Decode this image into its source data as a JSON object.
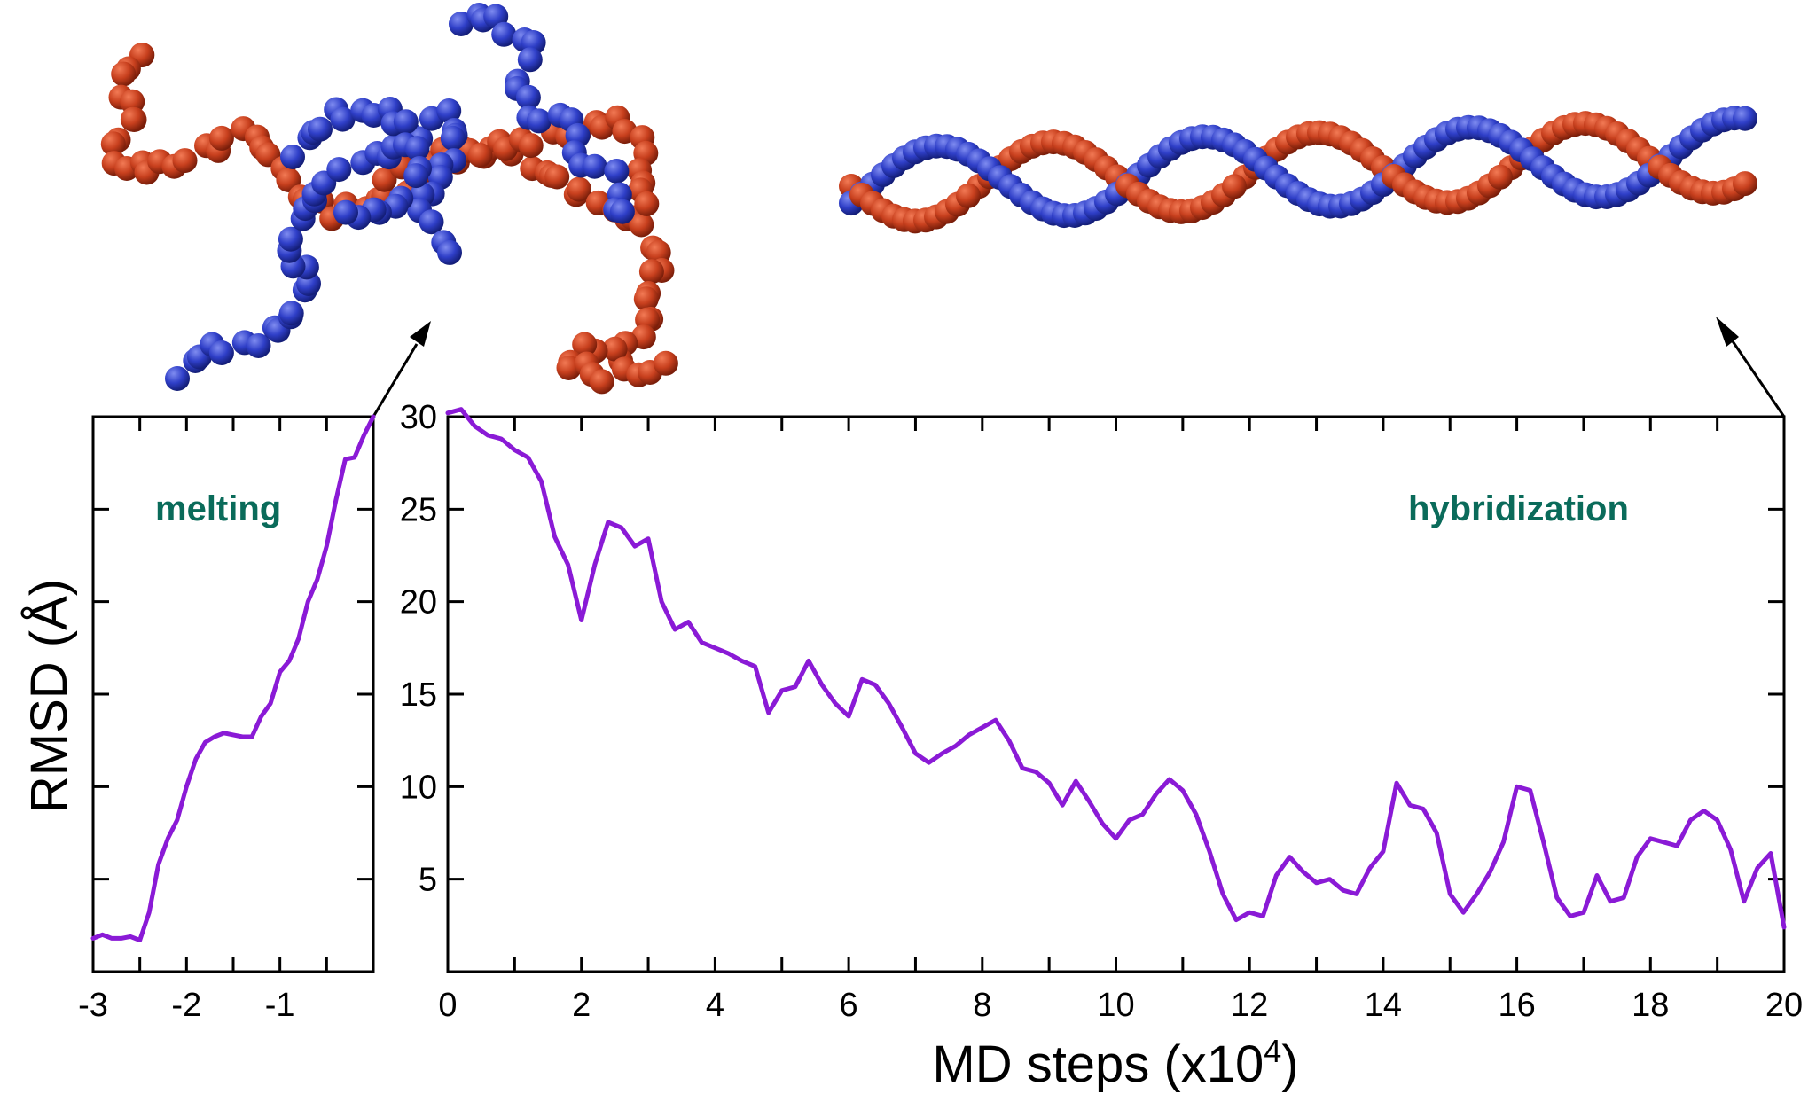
{
  "colors": {
    "line": "#8a1ad6",
    "annotation": "#0a6b5a",
    "bead_red": "#c8401e",
    "bead_blue": "#2f3fc8",
    "axis": "#000000"
  },
  "ylabel": "RMSD (Å)",
  "xlabel": "MD steps (x10",
  "xlabel_sup": "4",
  "xlabel_close": ")",
  "chart_data": [
    {
      "type": "line",
      "panel": "left",
      "annotation": "melting",
      "xlim": [
        -3,
        0
      ],
      "ylim": [
        0,
        30
      ],
      "x_ticks": [
        -3,
        -2,
        -1
      ],
      "x_tick_labels": [
        "-3",
        "-2",
        "-1"
      ],
      "y_ticks": [
        5,
        10,
        15,
        20,
        25,
        30
      ],
      "y_tick_labels": [],
      "grid": false,
      "x": [
        -3.0,
        -2.9,
        -2.8,
        -2.7,
        -2.6,
        -2.5,
        -2.4,
        -2.3,
        -2.2,
        -2.1,
        -2.0,
        -1.9,
        -1.8,
        -1.7,
        -1.6,
        -1.5,
        -1.4,
        -1.3,
        -1.2,
        -1.1,
        -1.0,
        -0.9,
        -0.8,
        -0.7,
        -0.6,
        -0.5,
        -0.4,
        -0.3,
        -0.2,
        -0.1,
        0.0
      ],
      "y": [
        1.8,
        2.0,
        1.8,
        1.8,
        1.9,
        1.7,
        3.2,
        5.8,
        7.2,
        8.2,
        10.0,
        11.5,
        12.4,
        12.7,
        12.9,
        12.8,
        12.7,
        12.7,
        13.8,
        14.5,
        16.2,
        16.8,
        18.0,
        20.0,
        21.2,
        23.0,
        25.5,
        27.7,
        27.8,
        29.0,
        30.0
      ]
    },
    {
      "type": "line",
      "panel": "right",
      "annotation": "hybridization",
      "xlim": [
        0,
        20
      ],
      "ylim": [
        0,
        30
      ],
      "x_ticks": [
        0,
        2,
        4,
        6,
        8,
        10,
        12,
        14,
        16,
        18,
        20
      ],
      "x_tick_labels": [
        "0",
        "2",
        "4",
        "6",
        "8",
        "10",
        "12",
        "14",
        "16",
        "18",
        "20"
      ],
      "y_ticks": [
        5,
        10,
        15,
        20,
        25,
        30
      ],
      "y_tick_labels": [
        "5",
        "10",
        "15",
        "20",
        "25",
        "30"
      ],
      "grid": false,
      "x": [
        0.0,
        0.2,
        0.4,
        0.6,
        0.8,
        1.0,
        1.2,
        1.4,
        1.6,
        1.8,
        2.0,
        2.2,
        2.4,
        2.6,
        2.8,
        3.0,
        3.2,
        3.4,
        3.6,
        3.8,
        4.0,
        4.2,
        4.4,
        4.6,
        4.8,
        5.0,
        5.2,
        5.4,
        5.6,
        5.8,
        6.0,
        6.2,
        6.4,
        6.6,
        6.8,
        7.0,
        7.2,
        7.4,
        7.6,
        7.8,
        8.0,
        8.2,
        8.4,
        8.6,
        8.8,
        9.0,
        9.2,
        9.4,
        9.6,
        9.8,
        10.0,
        10.2,
        10.4,
        10.6,
        10.8,
        11.0,
        11.2,
        11.4,
        11.6,
        11.8,
        12.0,
        12.2,
        12.4,
        12.6,
        12.8,
        13.0,
        13.2,
        13.4,
        13.6,
        13.8,
        14.0,
        14.2,
        14.4,
        14.6,
        14.8,
        15.0,
        15.2,
        15.4,
        15.6,
        15.8,
        16.0,
        16.2,
        16.4,
        16.6,
        16.8,
        17.0,
        17.2,
        17.4,
        17.6,
        17.8,
        18.0,
        18.2,
        18.4,
        18.6,
        18.8,
        19.0,
        19.2,
        19.4,
        19.6,
        19.8,
        20.0
      ],
      "y": [
        30.2,
        30.4,
        29.5,
        29.0,
        28.8,
        28.2,
        27.8,
        26.5,
        23.5,
        22.0,
        19.0,
        22.0,
        24.3,
        24.0,
        23.0,
        23.4,
        20.0,
        18.5,
        18.9,
        17.8,
        17.5,
        17.2,
        16.8,
        16.5,
        14.0,
        15.2,
        15.4,
        16.8,
        15.5,
        14.5,
        13.8,
        15.8,
        15.5,
        14.5,
        13.2,
        11.8,
        11.3,
        11.8,
        12.2,
        12.8,
        13.2,
        13.6,
        12.5,
        11.0,
        10.8,
        10.2,
        9.0,
        10.3,
        9.2,
        8.0,
        7.2,
        8.2,
        8.5,
        9.6,
        10.4,
        9.8,
        8.5,
        6.5,
        4.2,
        2.8,
        3.2,
        3.0,
        5.2,
        6.2,
        5.4,
        4.8,
        5.0,
        4.4,
        4.2,
        5.6,
        6.5,
        10.2,
        9.0,
        8.8,
        7.5,
        4.2,
        3.2,
        4.2,
        5.4,
        7.0,
        10.0,
        9.8,
        7.0,
        4.0,
        3.0,
        3.2,
        5.2,
        3.8,
        4.0,
        6.2,
        7.2,
        7.0,
        6.8,
        8.2,
        8.7,
        8.2,
        6.6,
        3.8,
        5.6,
        6.4,
        2.4
      ]
    }
  ]
}
